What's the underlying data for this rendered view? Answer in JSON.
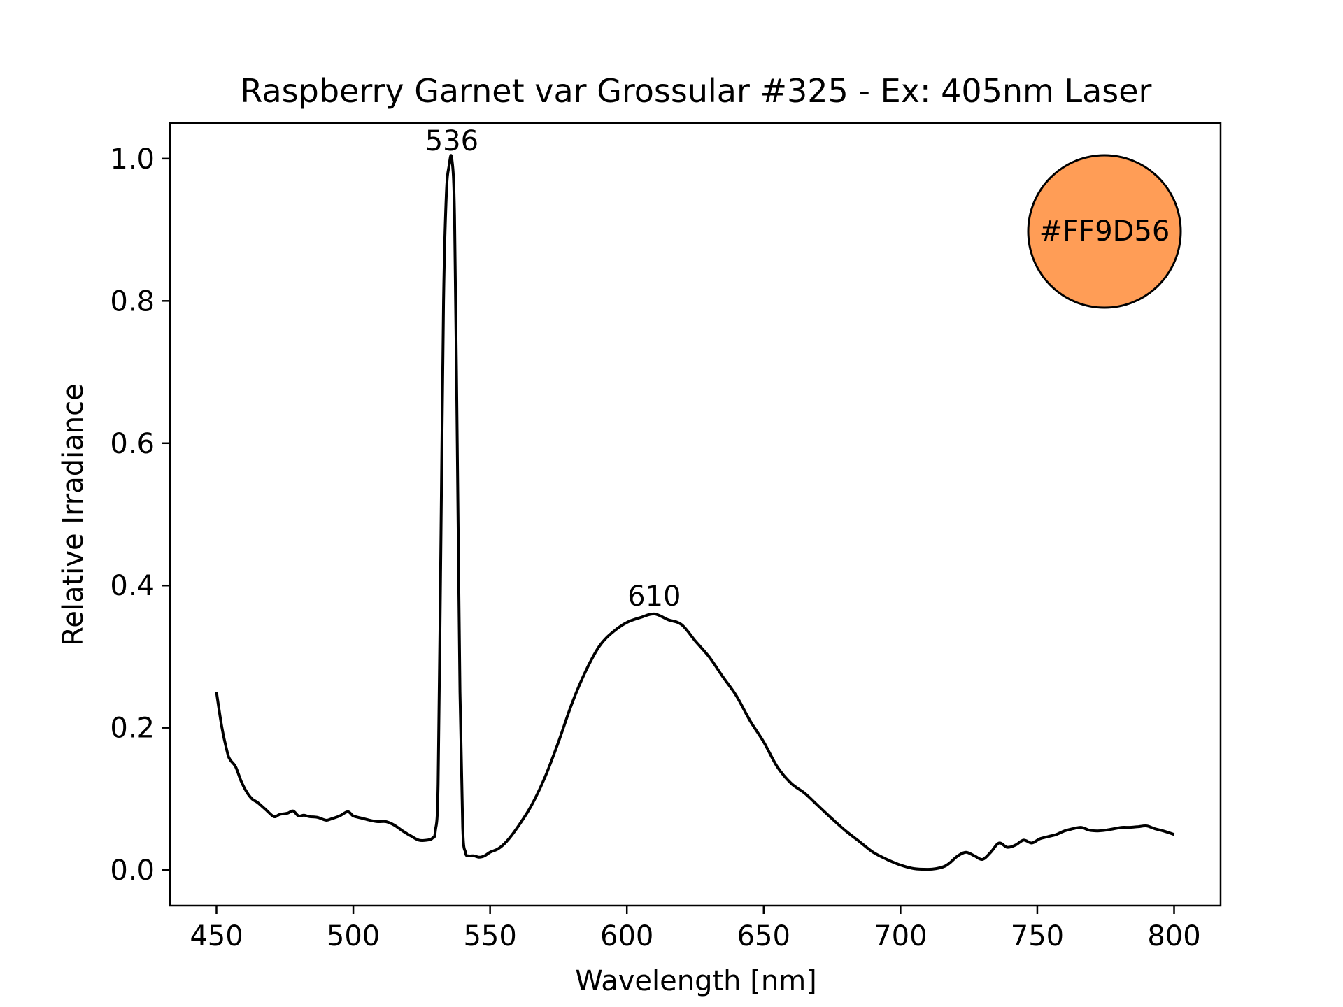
{
  "chart_data": {
    "type": "line",
    "title": "Raspberry Garnet var Grossular #325 - Ex: 405nm Laser",
    "xlabel": "Wavelength [nm]",
    "ylabel": "Relative Irradiance",
    "xlim": [
      433,
      817
    ],
    "ylim": [
      -0.05,
      1.05
    ],
    "xticks": [
      450,
      500,
      550,
      600,
      650,
      700,
      750,
      800
    ],
    "yticks": [
      0.0,
      0.2,
      0.4,
      0.6,
      0.8,
      1.0
    ],
    "xtick_labels": [
      "450",
      "500",
      "550",
      "600",
      "650",
      "700",
      "750",
      "800"
    ],
    "ytick_labels": [
      "0.0",
      "0.2",
      "0.4",
      "0.6",
      "0.8",
      "1.0"
    ],
    "grid": false,
    "line_color": "#000000",
    "series": [
      {
        "x": [
          450,
          452,
          454,
          455,
          457,
          459,
          461,
          463,
          465,
          468,
          471,
          473,
          476,
          478,
          480,
          482,
          484,
          487,
          490,
          492,
          495,
          498,
          500,
          503,
          506,
          509,
          512,
          515,
          518,
          521,
          524,
          527,
          529,
          530,
          531,
          532,
          533,
          534,
          535,
          536,
          537,
          538,
          539,
          540,
          541,
          542,
          544,
          546,
          548,
          550,
          553,
          556,
          560,
          565,
          570,
          575,
          580,
          585,
          590,
          595,
          600,
          605,
          610,
          615,
          620,
          625,
          630,
          635,
          640,
          645,
          650,
          655,
          660,
          665,
          670,
          675,
          680,
          685,
          690,
          695,
          700,
          705,
          710,
          713,
          716,
          718,
          721,
          724,
          727,
          730,
          733,
          736,
          739,
          742,
          745,
          748,
          751,
          754,
          757,
          760,
          763,
          766,
          769,
          772,
          775,
          778,
          781,
          784,
          787,
          790,
          793,
          796,
          800
        ],
        "y": [
          0.25,
          0.2,
          0.165,
          0.155,
          0.145,
          0.125,
          0.11,
          0.1,
          0.095,
          0.085,
          0.075,
          0.078,
          0.08,
          0.083,
          0.076,
          0.077,
          0.075,
          0.074,
          0.07,
          0.072,
          0.076,
          0.082,
          0.076,
          0.073,
          0.07,
          0.068,
          0.068,
          0.063,
          0.055,
          0.048,
          0.042,
          0.042,
          0.045,
          0.055,
          0.12,
          0.45,
          0.8,
          0.95,
          0.99,
          1.0,
          0.92,
          0.6,
          0.25,
          0.06,
          0.025,
          0.02,
          0.02,
          0.018,
          0.02,
          0.025,
          0.03,
          0.04,
          0.06,
          0.09,
          0.13,
          0.18,
          0.235,
          0.28,
          0.315,
          0.335,
          0.348,
          0.355,
          0.36,
          0.352,
          0.345,
          0.322,
          0.3,
          0.272,
          0.245,
          0.21,
          0.18,
          0.145,
          0.122,
          0.108,
          0.09,
          0.072,
          0.055,
          0.04,
          0.025,
          0.015,
          0.007,
          0.002,
          0.001,
          0.002,
          0.005,
          0.01,
          0.02,
          0.025,
          0.02,
          0.015,
          0.025,
          0.038,
          0.032,
          0.035,
          0.042,
          0.038,
          0.044,
          0.047,
          0.05,
          0.055,
          0.058,
          0.06,
          0.056,
          0.055,
          0.056,
          0.058,
          0.06,
          0.06,
          0.061,
          0.062,
          0.058,
          0.055,
          0.05
        ]
      }
    ],
    "annotations": [
      {
        "x": 536,
        "y": 1.0,
        "text": "536"
      },
      {
        "x": 610,
        "y": 0.36,
        "text": "610"
      }
    ],
    "color_swatch": {
      "label": "#FF9D56",
      "fill": "#FF9D56",
      "placement": "top-right"
    }
  }
}
